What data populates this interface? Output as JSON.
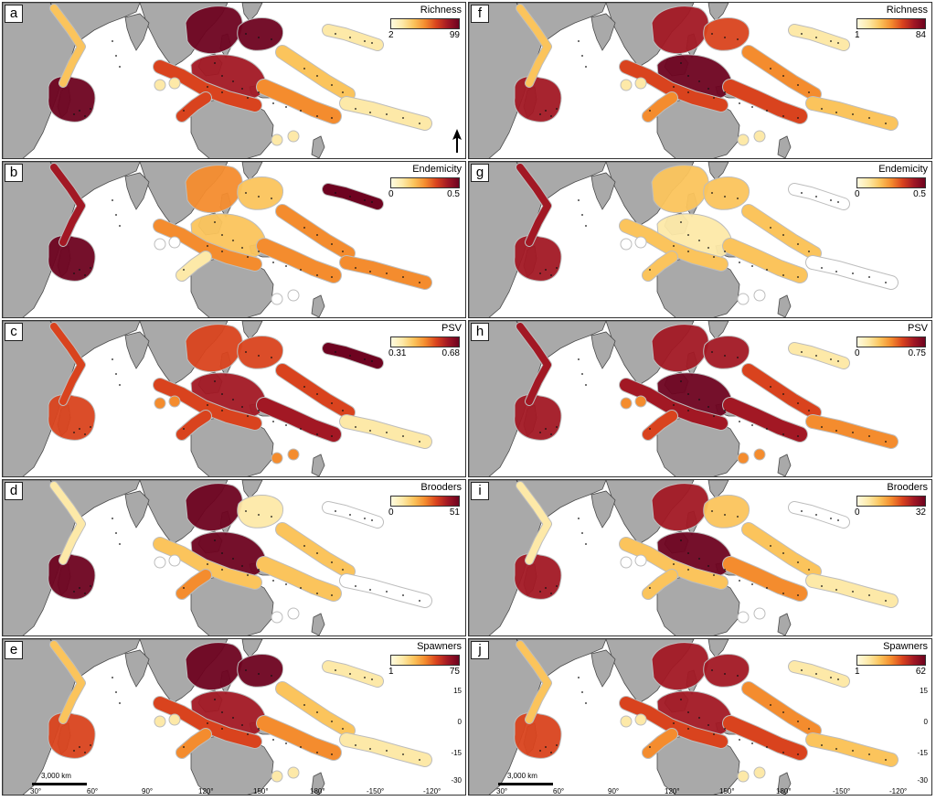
{
  "palette": {
    "land": "#a9a9a9",
    "land_stroke": "#4a4a4a",
    "ring_stroke": "#bdbdbd",
    "islands": "#111111",
    "ramp": [
      "#fffbe0",
      "#fde9a8",
      "#fbc45c",
      "#f48c2e",
      "#d9431e",
      "#a21824",
      "#6e0320"
    ]
  },
  "north_arrow": "north-arrow-icon",
  "scale_bar_label": "3,000 km",
  "lon_ticks": [
    "30°",
    "60°",
    "90°",
    "120°",
    "150°",
    "180°",
    "-150°",
    "-120°"
  ],
  "lat_ticks": [
    "15",
    "0",
    "-15",
    "-30"
  ],
  "panels": [
    {
      "letter": "a",
      "legend": {
        "title": "Richness",
        "min": "2",
        "max": "99"
      },
      "levels": [
        6,
        2,
        6,
        6,
        5,
        4,
        3,
        2,
        1,
        1,
        4,
        0.5
      ]
    },
    {
      "letter": "b",
      "legend": {
        "title": "Endemicity",
        "min": "0",
        "max": "0.5"
      },
      "levels": [
        6,
        5,
        3,
        2,
        2,
        3,
        3,
        3,
        3,
        6,
        1,
        0
      ]
    },
    {
      "letter": "c",
      "legend": {
        "title": "PSV",
        "min": "0.31",
        "max": "0.68"
      },
      "levels": [
        4,
        4,
        4,
        4,
        5,
        4,
        5,
        4,
        1,
        6,
        4,
        3
      ]
    },
    {
      "letter": "d",
      "legend": {
        "title": "Brooders",
        "min": "0",
        "max": "51"
      },
      "levels": [
        6,
        1,
        6,
        1,
        6,
        2,
        2,
        2,
        0,
        0,
        3,
        0
      ]
    },
    {
      "letter": "e",
      "legend": {
        "title": "Spawners",
        "min": "1",
        "max": "75"
      },
      "levels": [
        4,
        2,
        6,
        6,
        5,
        4,
        3,
        2,
        1,
        1,
        3,
        1
      ]
    },
    {
      "letter": "f",
      "legend": {
        "title": "Richness",
        "min": "1",
        "max": "84"
      },
      "levels": [
        5,
        2,
        5,
        4,
        6,
        4,
        4,
        3,
        2,
        1,
        3,
        1
      ]
    },
    {
      "letter": "g",
      "legend": {
        "title": "Endemicity",
        "min": "0",
        "max": "0.5"
      },
      "levels": [
        5,
        5,
        2,
        2,
        1,
        2,
        2,
        2,
        0,
        0,
        2,
        0
      ]
    },
    {
      "letter": "h",
      "legend": {
        "title": "PSV",
        "min": "0",
        "max": "0.75"
      },
      "levels": [
        5,
        5,
        5,
        5,
        6,
        5,
        5,
        4,
        3,
        1,
        4,
        3
      ]
    },
    {
      "letter": "i",
      "legend": {
        "title": "Brooders",
        "min": "0",
        "max": "32"
      },
      "levels": [
        5,
        1,
        5,
        2,
        6,
        2,
        3,
        2,
        1,
        0,
        2,
        0
      ]
    },
    {
      "letter": "j",
      "legend": {
        "title": "Spawners",
        "min": "1",
        "max": "62"
      },
      "levels": [
        4,
        2,
        5,
        5,
        5,
        4,
        4,
        3,
        2,
        1,
        3,
        1
      ]
    }
  ]
}
